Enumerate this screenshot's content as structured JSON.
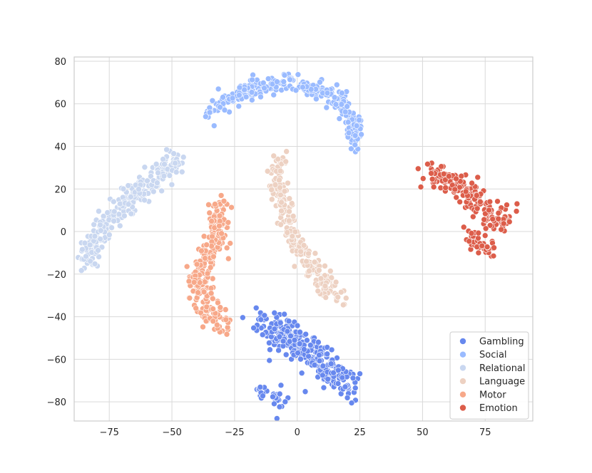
{
  "chart_data": {
    "type": "scatter",
    "title": "",
    "xlabel": "",
    "ylabel": "",
    "xlim": [
      -89,
      94
    ],
    "ylim": [
      -89,
      82
    ],
    "x_ticks": [
      -75,
      -50,
      -25,
      0,
      25,
      50,
      75
    ],
    "y_ticks": [
      -80,
      -60,
      -40,
      -20,
      0,
      20,
      40,
      60,
      80
    ],
    "x_tick_labels": [
      "−75",
      "−50",
      "−25",
      "0",
      "25",
      "50",
      "75"
    ],
    "y_tick_labels": [
      "−80",
      "−60",
      "−40",
      "−20",
      "0",
      "20",
      "40",
      "60",
      "80"
    ],
    "grid": true,
    "legend_position": "lower-right",
    "series": [
      {
        "name": "Gambling",
        "color": "#6788ee",
        "clusters": [
          {
            "path": [
              [
                -15,
                -43
              ],
              [
                -5,
                -48
              ],
              [
                3,
                -55
              ],
              [
                10,
                -62
              ],
              [
                18,
                -70
              ],
              [
                20,
                -73
              ]
            ],
            "spread": 5,
            "n": 300
          },
          {
            "path": [
              [
                -15,
                -74
              ],
              [
                -10,
                -78
              ],
              [
                -5,
                -80
              ]
            ],
            "spread": 3,
            "n": 30
          }
        ]
      },
      {
        "name": "Social",
        "color": "#9abbff",
        "clusters": [
          {
            "path": [
              [
                -36,
                56
              ],
              [
                -28,
                62
              ],
              [
                -15,
                68
              ],
              [
                -3,
                70
              ],
              [
                10,
                66
              ],
              [
                18,
                60
              ],
              [
                22,
                52
              ],
              [
                24,
                44
              ],
              [
                22,
                40
              ]
            ],
            "spread": 3,
            "n": 300
          }
        ]
      },
      {
        "name": "Relational",
        "color": "#c9d7f0",
        "clusters": [
          {
            "path": [
              [
                -83,
                -14
              ],
              [
                -82,
                -5
              ],
              [
                -75,
                5
              ],
              [
                -68,
                15
              ],
              [
                -60,
                22
              ],
              [
                -52,
                30
              ],
              [
                -46,
                34
              ]
            ],
            "spread": 4,
            "n": 260
          }
        ]
      },
      {
        "name": "Language",
        "color": "#edd1c2",
        "clusters": [
          {
            "path": [
              [
                -7,
                35
              ],
              [
                -8,
                25
              ],
              [
                -6,
                12
              ],
              [
                -3,
                0
              ],
              [
                2,
                -10
              ],
              [
                8,
                -20
              ],
              [
                13,
                -28
              ],
              [
                17,
                -32
              ]
            ],
            "spread": 3,
            "n": 260
          }
        ]
      },
      {
        "name": "Motor",
        "color": "#f7a889",
        "clusters": [
          {
            "path": [
              [
                -30,
                13
              ],
              [
                -32,
                -2
              ],
              [
                -35,
                -12
              ],
              [
                -40,
                -22
              ],
              [
                -38,
                -32
              ],
              [
                -33,
                -40
              ],
              [
                -27,
                -43
              ]
            ],
            "spread": 4,
            "n": 260
          }
        ]
      },
      {
        "name": "Emotion",
        "color": "#dc5d4a",
        "clusters": [
          {
            "path": [
              [
                52,
                27
              ],
              [
                60,
                25
              ],
              [
                67,
                20
              ],
              [
                73,
                12
              ],
              [
                80,
                5
              ],
              [
                84,
                9
              ]
            ],
            "spread": 4,
            "n": 200
          },
          {
            "path": [
              [
                66,
                -2
              ],
              [
                72,
                -5
              ],
              [
                78,
                -9
              ]
            ],
            "spread": 3,
            "n": 40
          }
        ]
      }
    ]
  }
}
